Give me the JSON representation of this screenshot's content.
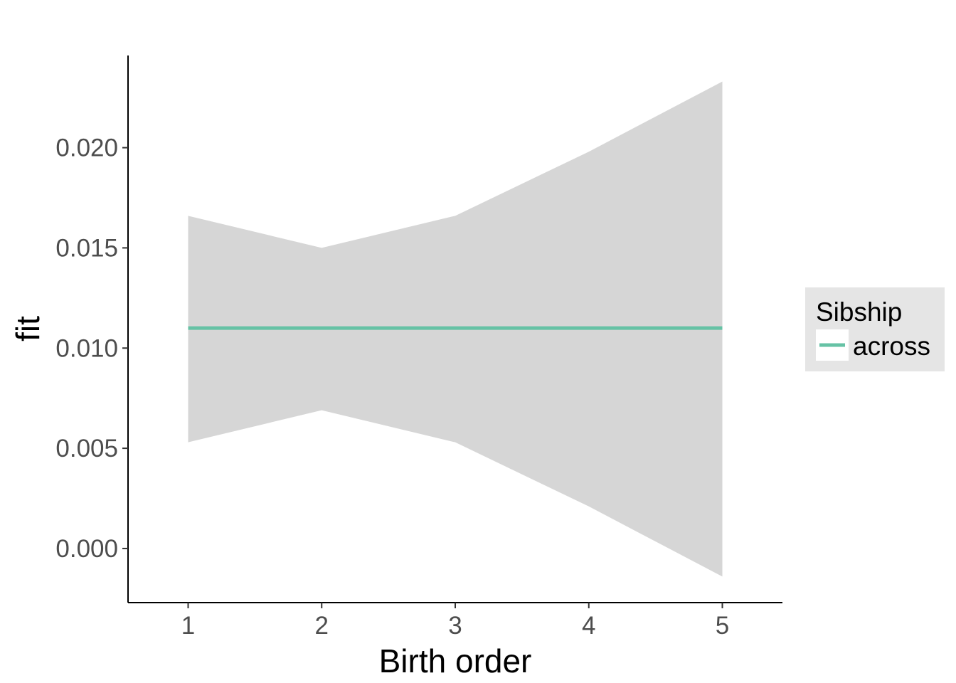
{
  "chart_data": {
    "type": "line",
    "title": "",
    "xlabel": "Birth order",
    "ylabel": "fit",
    "x": [
      1,
      2,
      3,
      4,
      5
    ],
    "xlim": [
      0.55,
      5.45
    ],
    "ylim": [
      -0.0027,
      0.0246
    ],
    "x_ticks": [
      "1",
      "2",
      "3",
      "4",
      "5"
    ],
    "y_ticks": [
      "0.000",
      "0.005",
      "0.010",
      "0.015",
      "0.020"
    ],
    "series": [
      {
        "name": "across",
        "color": "#66c2a5",
        "values": [
          0.011,
          0.011,
          0.011,
          0.011,
          0.011
        ],
        "ci_lower": [
          0.0053,
          0.0069,
          0.0053,
          0.0021,
          -0.0014
        ],
        "ci_upper": [
          0.0166,
          0.015,
          0.0166,
          0.0198,
          0.0233
        ]
      }
    ],
    "ribbon_color": "#d6d6d6",
    "grid": false,
    "legend": {
      "title": "Sibship",
      "position": "right",
      "background": "#e5e5e5"
    }
  }
}
